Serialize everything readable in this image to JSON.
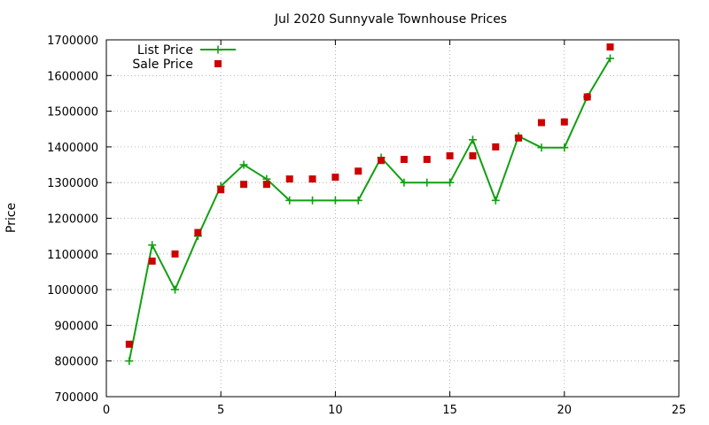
{
  "chart_data": {
    "type": "line",
    "title": "Jul 2020 Sunnyvale Townhouse Prices",
    "xlabel": "",
    "ylabel": "Price",
    "xlim": [
      0,
      25
    ],
    "ylim": [
      700000,
      1700000
    ],
    "xticks": [
      0,
      5,
      10,
      15,
      20,
      25
    ],
    "yticks": [
      700000,
      800000,
      900000,
      1000000,
      1100000,
      1200000,
      1300000,
      1400000,
      1500000,
      1600000,
      1700000
    ],
    "grid": true,
    "legend_position": "top-left",
    "series": [
      {
        "name": "List Price",
        "style": "line-plus",
        "color": "#11a011",
        "x": [
          1,
          2,
          3,
          4,
          5,
          6,
          7,
          8,
          9,
          10,
          11,
          12,
          13,
          14,
          15,
          16,
          17,
          18,
          19,
          20,
          21,
          22
        ],
        "y": [
          800000,
          1125000,
          1000000,
          1150000,
          1290000,
          1350000,
          1310000,
          1250000,
          1250000,
          1250000,
          1250000,
          1370000,
          1300000,
          1300000,
          1300000,
          1420000,
          1250000,
          1430000,
          1398000,
          1398000,
          1540000,
          1648000
        ]
      },
      {
        "name": "Sale Price",
        "style": "square",
        "color": "#cc0000",
        "x": [
          1,
          2,
          3,
          4,
          5,
          6,
          7,
          8,
          9,
          10,
          11,
          12,
          13,
          14,
          15,
          16,
          17,
          18,
          19,
          20,
          21,
          22
        ],
        "y": [
          847000,
          1080000,
          1100000,
          1160000,
          1280000,
          1295000,
          1295000,
          1310000,
          1310000,
          1315000,
          1332000,
          1362000,
          1365000,
          1365000,
          1375000,
          1375000,
          1400000,
          1425000,
          1468000,
          1470000,
          1540000,
          1680000
        ]
      }
    ]
  }
}
